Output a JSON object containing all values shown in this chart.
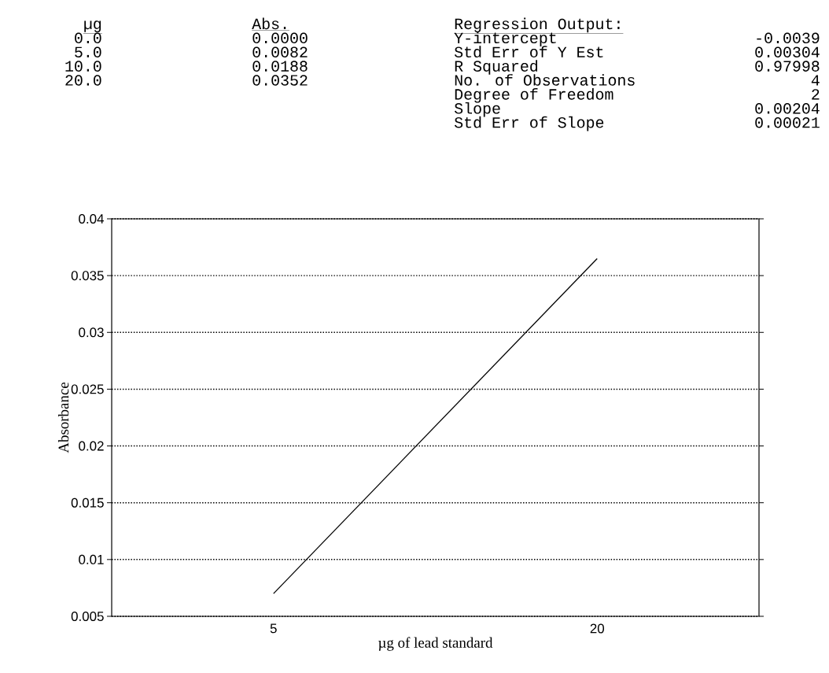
{
  "chart_data": {
    "type": "line",
    "xlabel": "µg of lead standard",
    "ylabel": "Absorbance",
    "categories": [
      "5",
      "20"
    ],
    "values": [
      0.007,
      0.0365
    ],
    "color": "#000000",
    "ylim": [
      0.005,
      0.04
    ],
    "yticks": [
      0.005,
      0.01,
      0.015,
      0.02,
      0.025,
      0.03,
      0.035,
      0.04
    ],
    "grid": "y",
    "annotations": [
      "µg",
      "0.0",
      "5.0",
      "10.0",
      "20.0",
      "Abs.",
      "0.0000",
      "0.0082",
      "0.0188",
      "0.0352",
      "Regression Output:",
      "Y-intercept",
      "-0.0039",
      "Std Err of Y Est",
      "0.00304",
      "R Squared",
      "0.97998",
      "No. of Observations",
      "4",
      "Degree of Freedom",
      "2",
      "Slope",
      "0.00204",
      "Std Err of Slope",
      "0.00021"
    ]
  }
}
